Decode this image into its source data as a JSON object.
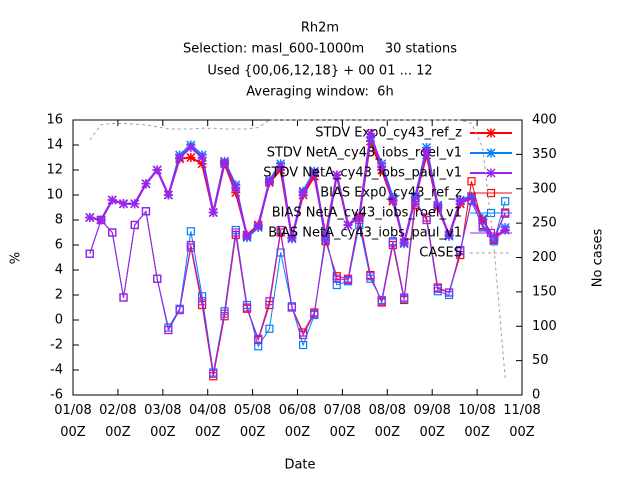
{
  "chart_data": {
    "type": "line",
    "title": [
      "Rh2m",
      "Selection: masl_600-1000m     30 stations",
      "Used {00,06,12,18} + 00 01 ... 12",
      "Averaging window:  6h"
    ],
    "xlabel": "Date",
    "ylabel": "%",
    "y2label": "No cases",
    "x": [
      0.375,
      0.625,
      0.875,
      1.125,
      1.375,
      1.625,
      1.875,
      2.125,
      2.375,
      2.625,
      2.875,
      3.125,
      3.375,
      3.625,
      3.875,
      4.125,
      4.375,
      4.625,
      4.875,
      5.125,
      5.375,
      5.625,
      5.875,
      6.125,
      6.375,
      6.625,
      6.875,
      7.125,
      7.375,
      7.625,
      7.875,
      8.125,
      8.375,
      8.625,
      8.875,
      9.125,
      9.375,
      9.625
    ],
    "xlim": [
      0,
      10
    ],
    "xticks": [
      {
        "value": 0,
        "label": "01/08\n00Z"
      },
      {
        "value": 1,
        "label": "02/08\n00Z"
      },
      {
        "value": 2,
        "label": "03/08\n00Z"
      },
      {
        "value": 3,
        "label": "04/08\n00Z"
      },
      {
        "value": 4,
        "label": "05/08\n00Z"
      },
      {
        "value": 5,
        "label": "06/08\n00Z"
      },
      {
        "value": 6,
        "label": "07/08\n00Z"
      },
      {
        "value": 7,
        "label": "08/08\n00Z"
      },
      {
        "value": 8,
        "label": "09/08\n00Z"
      },
      {
        "value": 9,
        "label": "10/08\n00Z"
      },
      {
        "value": 10,
        "label": "11/08\n00Z"
      }
    ],
    "ylim": [
      -6,
      16
    ],
    "yticks": [
      -6,
      -4,
      -2,
      0,
      2,
      4,
      6,
      8,
      10,
      12,
      14,
      16
    ],
    "y2lim": [
      0,
      400
    ],
    "y2ticks": [
      0,
      50,
      100,
      150,
      200,
      250,
      300,
      350,
      400
    ],
    "series": [
      {
        "name": "STDV Exp0_cy43_ref_z",
        "color": "#ff0000",
        "marker": "star",
        "width": 2,
        "values": [
          8.2,
          8.0,
          9.6,
          9.3,
          9.3,
          10.9,
          12.0,
          10.0,
          12.9,
          13.0,
          12.5,
          8.6,
          12.5,
          10.2,
          6.8,
          7.6,
          11.0,
          12.0,
          6.6,
          10.0,
          11.5,
          6.8,
          11.6,
          7.6,
          8.2,
          14.3,
          12.0,
          9.5,
          6.2,
          9.8,
          13.2,
          9.0,
          6.8,
          9.3,
          9.8,
          8.0,
          6.6,
          7.2
        ]
      },
      {
        "name": "STDV NetA_cy43_iobs_roel_v1",
        "color": "#0080ff",
        "marker": "star",
        "width": 2,
        "values": [
          8.2,
          8.0,
          9.6,
          9.3,
          9.3,
          10.9,
          12.0,
          10.0,
          13.2,
          14.0,
          13.2,
          8.6,
          12.7,
          10.8,
          6.6,
          7.4,
          11.2,
          12.5,
          6.5,
          10.3,
          11.9,
          6.4,
          11.6,
          7.6,
          8.3,
          14.6,
          12.5,
          9.8,
          6.1,
          9.9,
          13.8,
          9.2,
          6.7,
          9.6,
          9.9,
          8.1,
          6.4,
          7.4
        ]
      },
      {
        "name": "STDV NetA_cy43_iobs_paul_v1",
        "color": "#a020f0",
        "marker": "star",
        "width": 2,
        "values": [
          8.2,
          8.0,
          9.6,
          9.3,
          9.3,
          10.9,
          12.0,
          10.0,
          13.0,
          13.8,
          13.0,
          8.6,
          12.6,
          10.6,
          6.7,
          7.5,
          11.1,
          12.3,
          6.6,
          10.2,
          11.8,
          6.6,
          11.6,
          7.6,
          8.2,
          14.9,
          12.3,
          9.6,
          6.2,
          9.8,
          13.5,
          9.1,
          6.8,
          9.5,
          9.8,
          8.0,
          6.5,
          7.2
        ]
      },
      {
        "name": "BIAS Exp0_cy43_ref_z",
        "color": "#ff0000",
        "marker": "square",
        "width": 1,
        "values": [
          5.3,
          8.0,
          7.0,
          1.8,
          7.6,
          8.7,
          3.3,
          -0.8,
          0.8,
          5.8,
          1.2,
          -4.5,
          0.3,
          6.8,
          0.9,
          -1.6,
          1.2,
          7.0,
          1.0,
          -1.0,
          0.6,
          6.3,
          3.5,
          3.3,
          8.2,
          3.6,
          1.4,
          6.0,
          1.6,
          9.2,
          8.2,
          2.6,
          2.2,
          5.2,
          11.1,
          7.6,
          6.4,
          8.6
        ]
      },
      {
        "name": "BIAS NetA_cy43_iobs_roel_v1",
        "color": "#0080ff",
        "marker": "square",
        "width": 1,
        "values": [
          5.3,
          8.0,
          7.0,
          1.8,
          7.6,
          8.7,
          3.3,
          -0.6,
          0.9,
          7.1,
          1.9,
          -4.2,
          0.7,
          7.2,
          1.2,
          -2.1,
          -0.7,
          5.4,
          1.1,
          -2.0,
          0.4,
          6.8,
          2.8,
          3.1,
          7.6,
          3.3,
          1.6,
          6.3,
          1.7,
          9.6,
          8.0,
          2.3,
          2.0,
          5.6,
          9.6,
          7.4,
          6.3,
          9.5
        ]
      },
      {
        "name": "BIAS NetA_cy43_iobs_paul_v1",
        "color": "#a020f0",
        "marker": "square",
        "width": 1,
        "values": [
          5.3,
          8.0,
          7.0,
          1.8,
          7.6,
          8.7,
          3.3,
          -0.8,
          0.8,
          6.0,
          1.5,
          -4.3,
          0.5,
          7.0,
          1.0,
          -1.5,
          1.5,
          7.2,
          1.0,
          -1.2,
          0.5,
          6.5,
          3.3,
          3.2,
          8.0,
          3.5,
          1.5,
          6.2,
          1.8,
          9.5,
          8.0,
          2.5,
          2.2,
          5.5,
          9.5,
          7.5,
          6.5,
          8.5
        ]
      },
      {
        "name": "CASES",
        "color": "#a0a0a0",
        "axis": "y2",
        "dashed": true,
        "width": 1,
        "values": [
          371,
          393,
          395,
          395,
          394,
          393,
          390,
          387,
          387,
          387,
          388,
          388,
          387,
          387,
          387,
          389,
          400,
          400,
          400,
          400,
          400,
          400,
          400,
          400,
          400,
          400,
          400,
          400,
          400,
          400,
          400,
          400,
          400,
          400,
          395,
          360,
          215,
          25
        ]
      }
    ]
  }
}
